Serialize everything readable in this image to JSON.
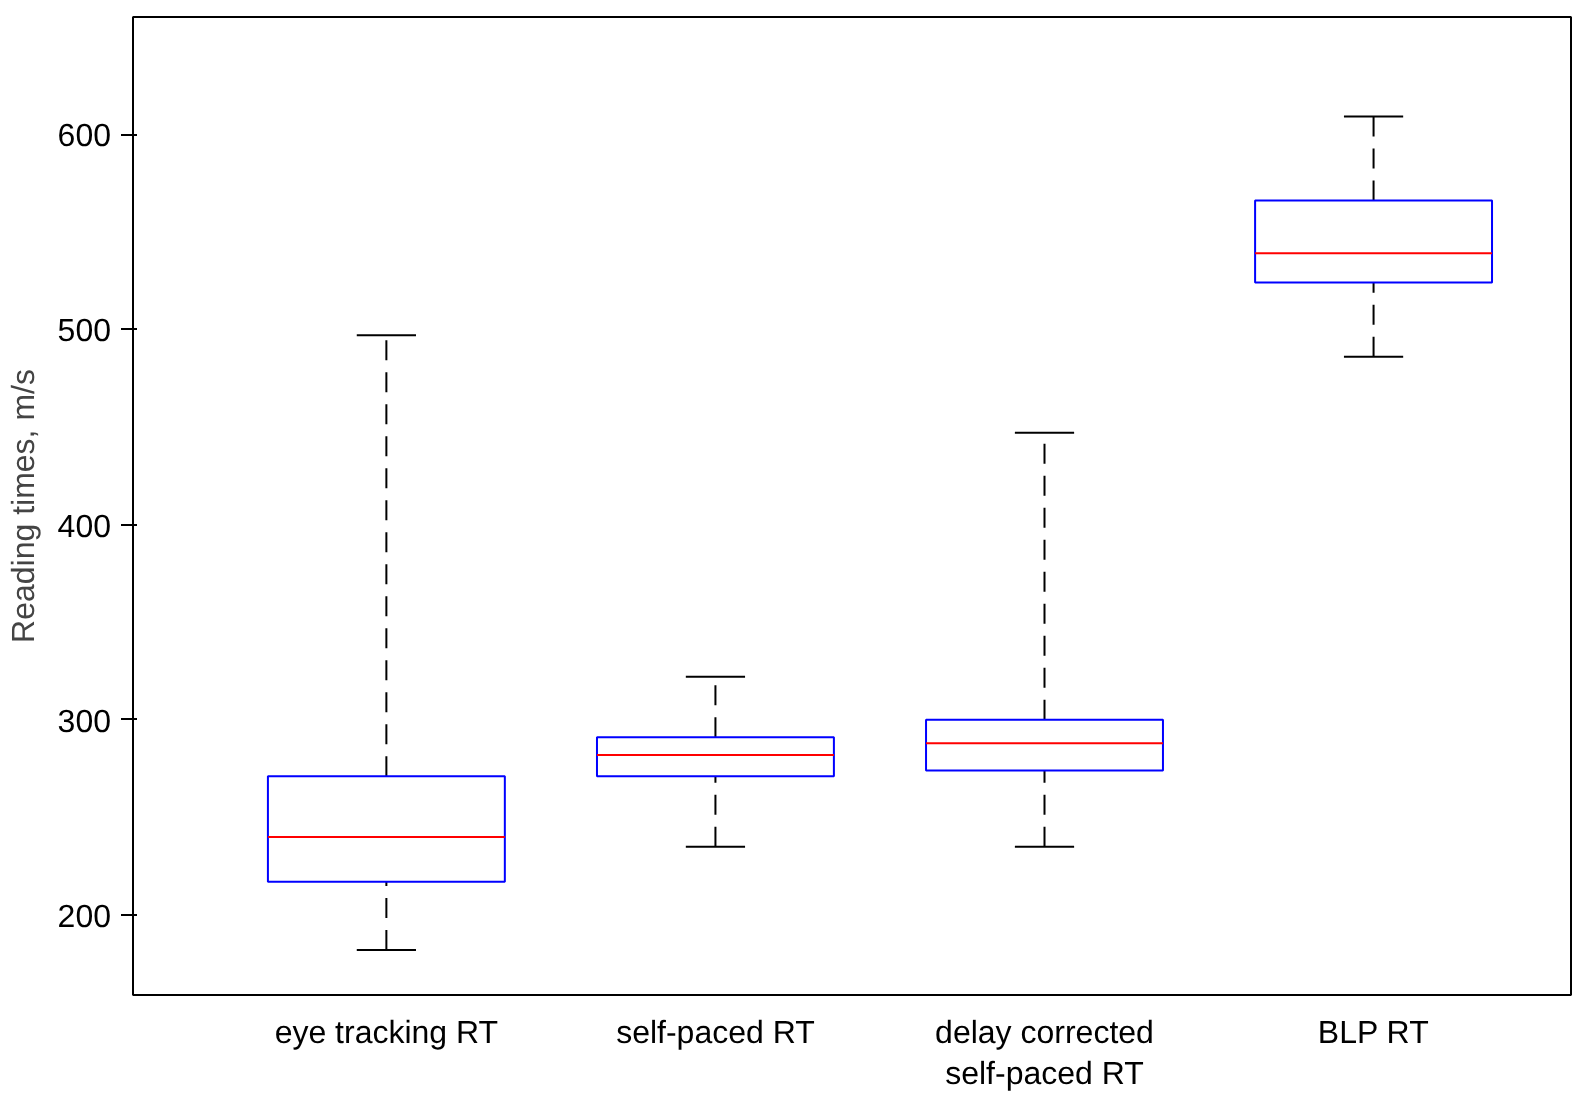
{
  "chart_data": {
    "type": "box",
    "ylabel": "Reading times, m/s",
    "categories": [
      "eye tracking RT",
      "self-paced RT",
      "delay corrected\nself-paced RT",
      "BLP RT"
    ],
    "boxes": [
      {
        "low": 182,
        "q1": 217,
        "median": 240,
        "q3": 271,
        "high": 497
      },
      {
        "low": 235,
        "q1": 271,
        "median": 282,
        "q3": 291,
        "high": 322
      },
      {
        "low": 235,
        "q1": 274,
        "median": 288,
        "q3": 300,
        "high": 447
      },
      {
        "low": 486,
        "q1": 524,
        "median": 539,
        "q3": 566,
        "high": 609
      }
    ],
    "color": "#0000ff",
    "ylim": [
      159,
      660
    ],
    "yticks": [
      200,
      300,
      400,
      500,
      600
    ],
    "grid": false
  }
}
